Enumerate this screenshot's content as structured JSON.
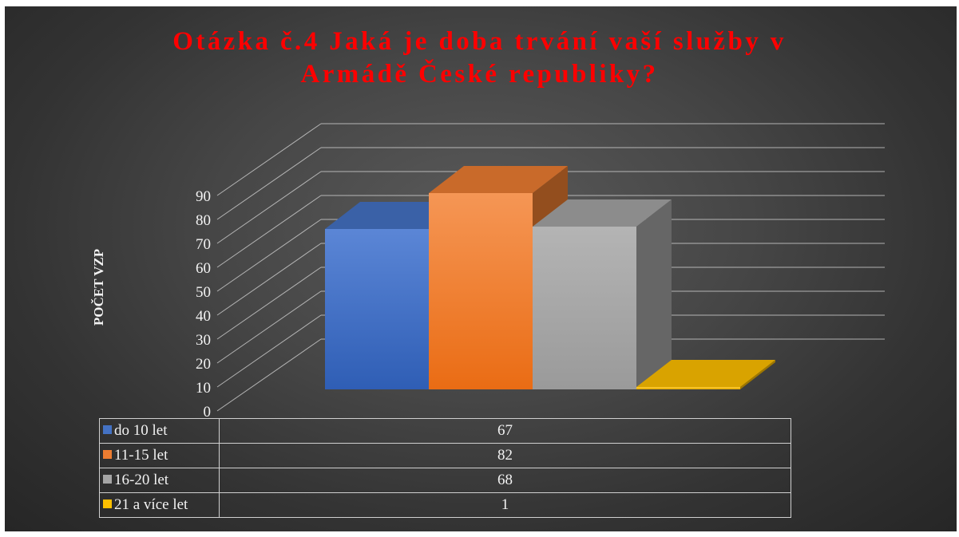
{
  "chart_data": {
    "type": "bar",
    "title": "Otázka č.4 Jaká je doba trvání vaší služby v Armádě České republiky?",
    "title_lines": [
      "Otázka č.4 Jaká je doba trvání vaší služby v",
      "Armádě České republiky?"
    ],
    "ylabel": "POČET VZP",
    "ylim": [
      0,
      90
    ],
    "yticks": [
      "0",
      "10",
      "20",
      "30",
      "40",
      "50",
      "60",
      "70",
      "80",
      "90"
    ],
    "grid": true,
    "style": "3d-column",
    "data_table": true,
    "series": [
      {
        "name": "do 10 let",
        "value": 67,
        "value_label": "67",
        "color": "#4472c4"
      },
      {
        "name": "11-15 let",
        "value": 82,
        "value_label": "82",
        "color": "#ed7d31"
      },
      {
        "name": "16-20 let",
        "value": 68,
        "value_label": "68",
        "color": "#a5a5a5"
      },
      {
        "name": "21 a více let",
        "value": 1,
        "value_label": "1",
        "color": "#ffc000"
      }
    ]
  },
  "colors": {
    "title": "#ff0000",
    "text": "#f2f2f2",
    "background": "#404040",
    "grid": "#d9d9d9"
  }
}
